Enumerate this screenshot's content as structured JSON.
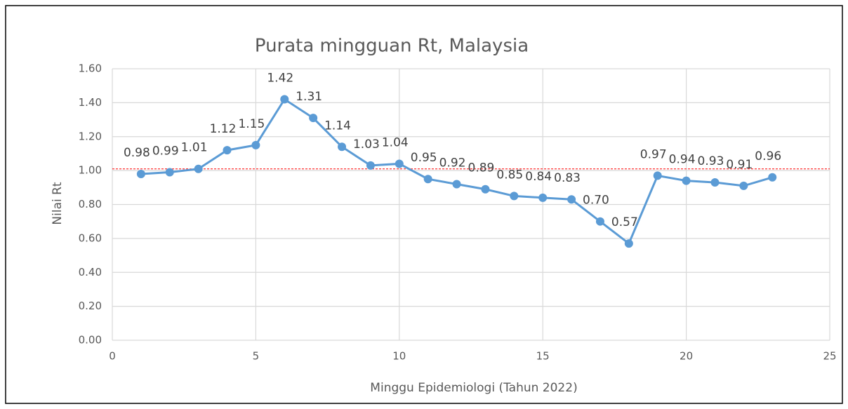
{
  "chart_data": {
    "type": "line",
    "title": "Purata mingguan Rt, Malaysia",
    "x_label": "Minggu Epidemiologi (Tahun 2022)",
    "y_label": "Nilai Rt",
    "x": [
      1,
      2,
      3,
      4,
      5,
      6,
      7,
      8,
      9,
      10,
      11,
      12,
      13,
      14,
      15,
      16,
      17,
      18,
      19,
      20,
      21,
      22,
      23
    ],
    "series": [
      {
        "name": "Rt",
        "color": "#5b9bd5",
        "values": [
          0.98,
          0.99,
          1.01,
          1.12,
          1.15,
          1.42,
          1.31,
          1.14,
          1.03,
          1.04,
          0.95,
          0.92,
          0.89,
          0.85,
          0.84,
          0.83,
          0.7,
          0.57,
          0.97,
          0.94,
          0.93,
          0.91,
          0.96
        ],
        "value_labels": [
          "0.98",
          "0.99",
          "1.01",
          "1.12",
          "1.15",
          "1.42",
          "1.31",
          "1.14",
          "1.03",
          "1.04",
          "0.95",
          "0.92",
          "0.89",
          "0.85",
          "0.84",
          "0.83",
          "0.70",
          "0.57",
          "0.97",
          "0.94",
          "0.93",
          "0.91",
          "0.96"
        ]
      }
    ],
    "xlim": [
      0,
      25
    ],
    "xticks": [
      0,
      5,
      10,
      15,
      20,
      25
    ],
    "ylim": [
      0,
      1.6
    ],
    "yticks": [
      {
        "value": 0,
        "label": "0.00"
      },
      {
        "value": 0.2,
        "label": "0.20"
      },
      {
        "value": 0.4,
        "label": "0.40"
      },
      {
        "value": 0.6,
        "label": "0.60"
      },
      {
        "value": 0.8,
        "label": "0.80"
      },
      {
        "value": 1,
        "label": "1.00"
      },
      {
        "value": 1.2,
        "label": "1.20"
      },
      {
        "value": 1.4,
        "label": "1.40"
      },
      {
        "value": 1.6,
        "label": "1.60"
      }
    ],
    "grid": true,
    "reference_line": {
      "value": 1.01,
      "color": "#ff0000",
      "dashed": true
    }
  }
}
